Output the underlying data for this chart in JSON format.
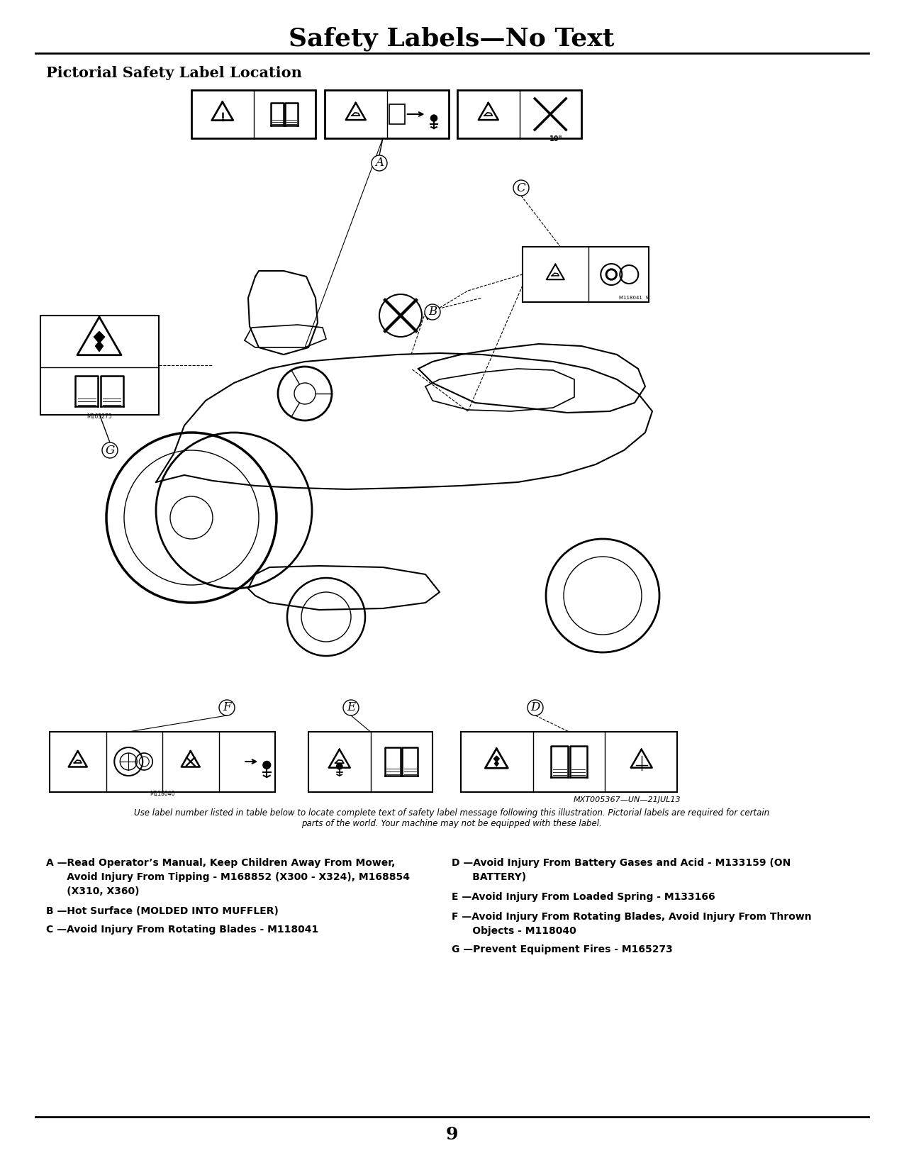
{
  "title": "Safety Labels—No Text",
  "subtitle": "Pictorial Safety Label Location",
  "background_color": "#ffffff",
  "page_number": "9",
  "caption_italic": "Use label number listed in table below to locate complete text of safety label message following this illustration. Pictorial labels are required for certain\nparts of the world. Your machine may not be equipped with these label.",
  "label_A": "A —Read Operator’s Manual, Keep Children Away From Mower,",
  "label_A2": "      Avoid Injury From Tipping - M168852 (X300 - X324), M168854",
  "label_A3": "      (X310, X360)",
  "label_B": "B —Hot Surface (MOLDED INTO MUFFLER)",
  "label_C": "C —Avoid Injury From Rotating Blades - M118041",
  "label_D": "D —Avoid Injury From Battery Gases and Acid - M133159 (ON",
  "label_D2": "      BATTERY)",
  "label_E": "E —Avoid Injury From Loaded Spring - M133166",
  "label_F": "F —Avoid Injury From Rotating Blades, Avoid Injury From Thrown",
  "label_F2": "      Objects - M118040",
  "label_G": "G —Prevent Equipment Fires - M165273",
  "watermark": "MXT005367—UN—21JUL13"
}
